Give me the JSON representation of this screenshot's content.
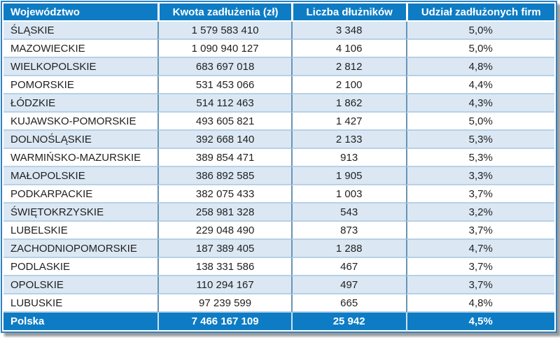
{
  "colors": {
    "header_bg": "#0E7CC4",
    "footer_bg": "#0E7CC4",
    "band_row_bg": "#DBE8F4",
    "plain_row_bg": "#FFFFFF",
    "outer_border": "#2E81C4",
    "row_separator": "#B7D0E6",
    "column_separator": "#6A94B4",
    "header_text": "#FFFFFF",
    "body_text": "#1F1F1F",
    "shadow": "#9B9B9B"
  },
  "chart_data": {
    "type": "table",
    "columns": [
      "Województwo",
      "Kwota zadłużenia (zł)",
      "Liczba dłużników",
      "Udział zadłużonych firm"
    ],
    "rows": [
      [
        "ŚLĄSKIE",
        "1 579 583 410",
        "3 348",
        "5,0%"
      ],
      [
        "MAZOWIECKIE",
        "1 090 940 127",
        "4 106",
        "5,0%"
      ],
      [
        "WIELKOPOLSKIE",
        "683 697 018",
        "2 812",
        "4,8%"
      ],
      [
        "POMORSKIE",
        "531 453 066",
        "2 100",
        "4,4%"
      ],
      [
        "ŁÓDZKIE",
        "514 112 463",
        "1 862",
        "4,3%"
      ],
      [
        "KUJAWSKO-POMORSKIE",
        "493 605 821",
        "1 427",
        "5,0%"
      ],
      [
        "DOLNOŚLĄSKIE",
        "392 668 140",
        "2 133",
        "5,3%"
      ],
      [
        "WARMIŃSKO-MAZURSKIE",
        "389 854 471",
        "913",
        "5,3%"
      ],
      [
        "MAŁOPOLSKIE",
        "386 892 585",
        "1 905",
        "3,3%"
      ],
      [
        "PODKARPACKIE",
        "382 075 433",
        "1 003",
        "3,7%"
      ],
      [
        "ŚWIĘTOKRZYSKIE",
        "258 981 328",
        "543",
        "3,2%"
      ],
      [
        "LUBELSKIE",
        "229 048 490",
        "873",
        "3,7%"
      ],
      [
        "ZACHODNIOPOMORSKIE",
        "187 389 405",
        "1 288",
        "4,7%"
      ],
      [
        "PODLASKIE",
        "138 331 586",
        "467",
        "3,7%"
      ],
      [
        "OPOLSKIE",
        "110 294 167",
        "497",
        "3,7%"
      ],
      [
        "LUBUSKIE",
        "97 239 599",
        "665",
        "4,8%"
      ]
    ],
    "footer": [
      "Polska",
      "7 466 167 109",
      "25 942",
      "4,5%"
    ],
    "layout": {
      "banded_rows": true,
      "grid": true,
      "legend": "none"
    }
  }
}
